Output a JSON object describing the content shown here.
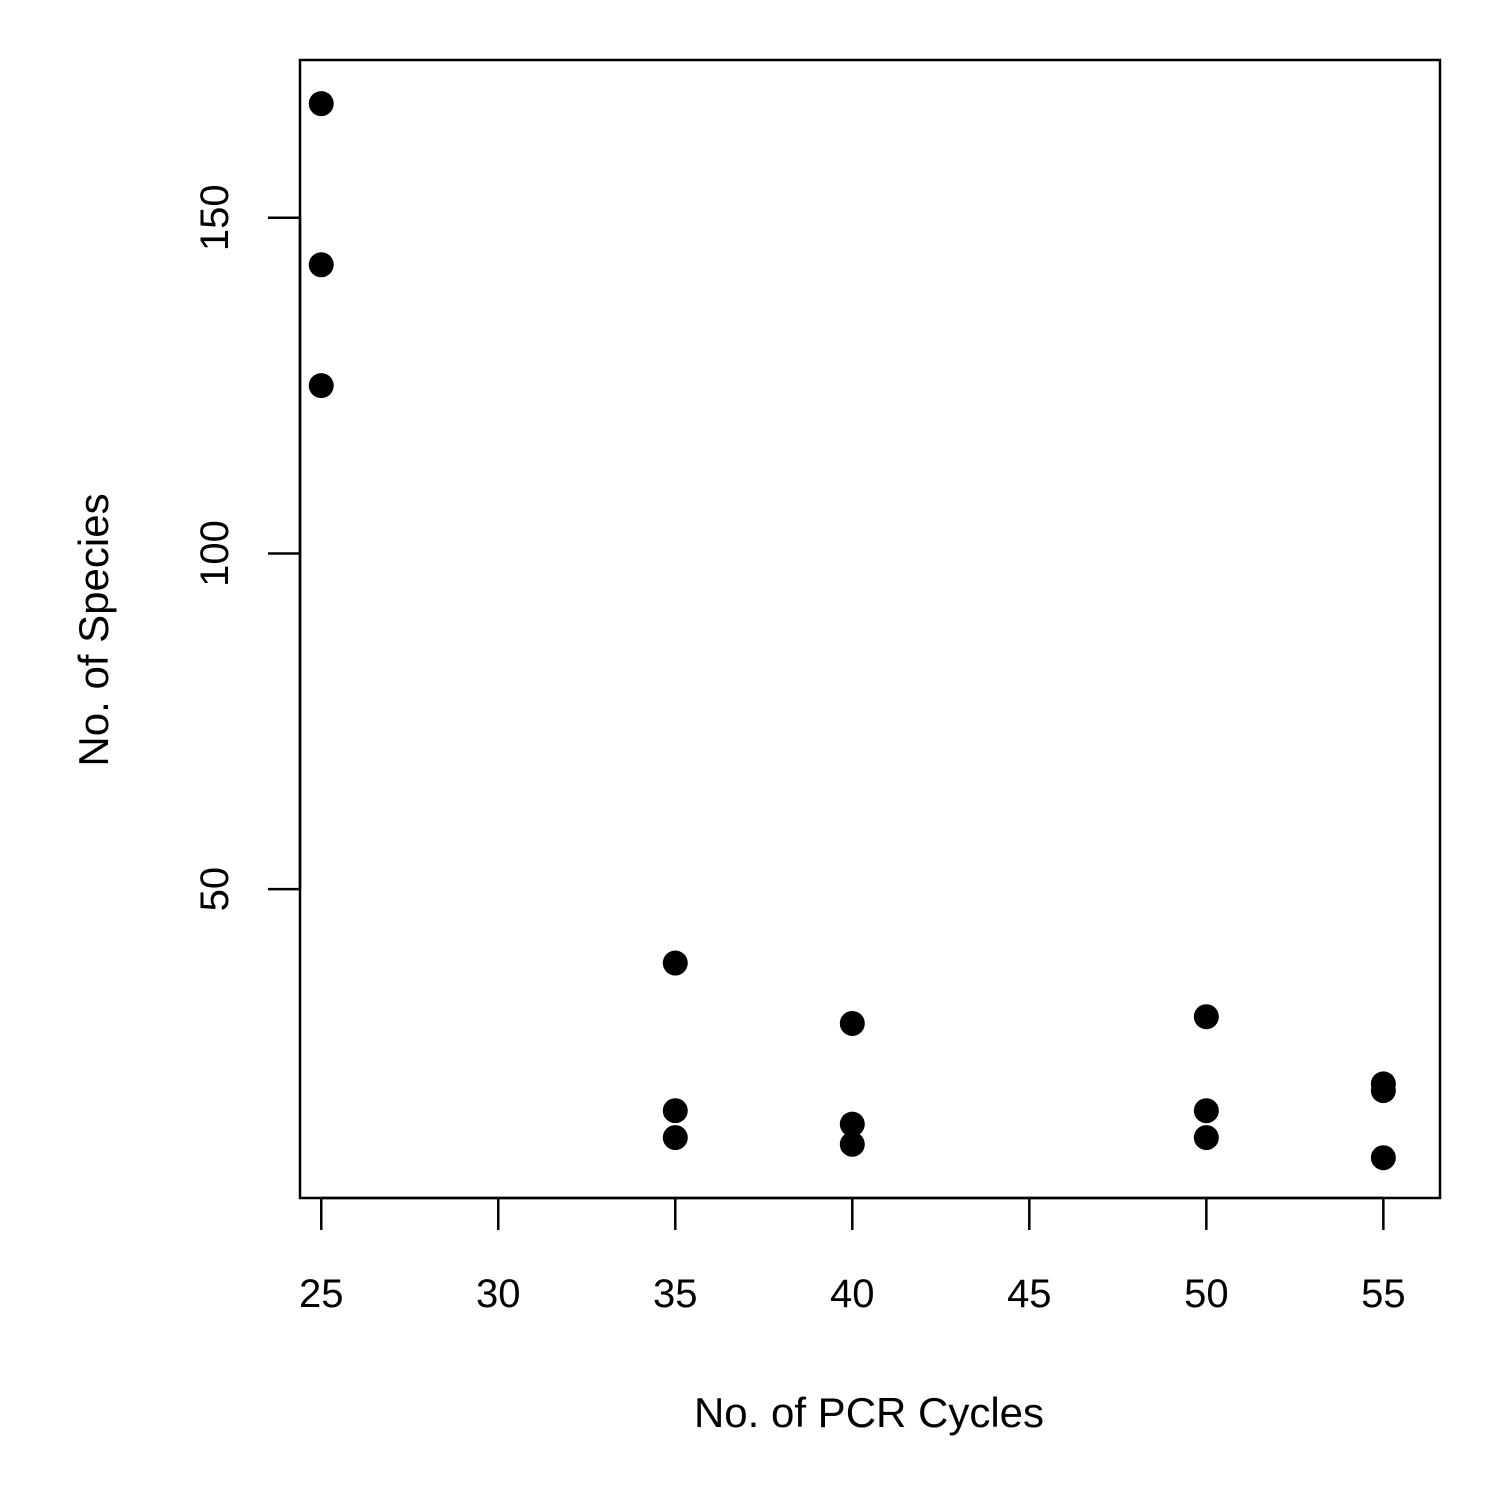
{
  "chart_data": {
    "type": "scatter",
    "title": "",
    "xlabel": "No. of PCR Cycles",
    "ylabel": "No. of Species",
    "xlim": [
      24.4,
      56.6
    ],
    "ylim": [
      4,
      173.5
    ],
    "xticks": [
      25,
      30,
      35,
      40,
      45,
      50,
      55
    ],
    "xtick_labels": [
      "25",
      "30",
      "35",
      "40",
      "45",
      "50",
      "55"
    ],
    "yticks": [
      50,
      100,
      150
    ],
    "ytick_labels": [
      "50",
      "100",
      "150"
    ],
    "grid": false,
    "legend": "none",
    "point_color": "#000000",
    "x": [
      25,
      25,
      25,
      35,
      35,
      35,
      40,
      40,
      40,
      50,
      50,
      50,
      55,
      55,
      55
    ],
    "y": [
      167,
      143,
      125,
      39,
      17,
      13,
      30,
      15,
      12,
      31,
      17,
      13,
      21,
      20,
      10
    ]
  }
}
